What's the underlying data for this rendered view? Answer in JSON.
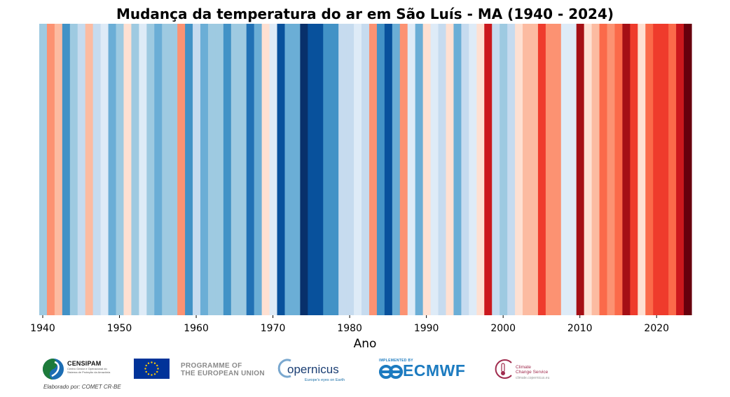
{
  "chart_data": {
    "type": "heatmap",
    "title": "Mudança da temperatura do ar em São Luís - MA (1940 - 2024)",
    "xlabel": "Ano",
    "ylabel": "",
    "xlim": [
      1940,
      2024
    ],
    "xticks": [
      1940,
      1950,
      1960,
      1970,
      1980,
      1990,
      2000,
      2010,
      2020
    ],
    "grid": false,
    "colormap": "RdBu_r",
    "color_scale": [
      {
        "level": -4,
        "color": "#08306b"
      },
      {
        "level": -3,
        "color": "#08519c"
      },
      {
        "level": -2,
        "color": "#2171b5"
      },
      {
        "level": -1.5,
        "color": "#4292c6"
      },
      {
        "level": -1,
        "color": "#6baed6"
      },
      {
        "level": -0.5,
        "color": "#9ecae1"
      },
      {
        "level": -0.25,
        "color": "#c6dbef"
      },
      {
        "level": -0.1,
        "color": "#deebf7"
      },
      {
        "level": 0.1,
        "color": "#fee0d2"
      },
      {
        "level": 0.25,
        "color": "#fcbba1"
      },
      {
        "level": 0.5,
        "color": "#fc9272"
      },
      {
        "level": 1,
        "color": "#fb6a4a"
      },
      {
        "level": 1.5,
        "color": "#ef3b2c"
      },
      {
        "level": 2,
        "color": "#cb181d"
      },
      {
        "level": 2.5,
        "color": "#a50f15"
      },
      {
        "level": 3,
        "color": "#67000d"
      }
    ],
    "years": [
      1940,
      1941,
      1942,
      1943,
      1944,
      1945,
      1946,
      1947,
      1948,
      1949,
      1950,
      1951,
      1952,
      1953,
      1954,
      1955,
      1956,
      1957,
      1958,
      1959,
      1960,
      1961,
      1962,
      1963,
      1964,
      1965,
      1966,
      1967,
      1968,
      1969,
      1970,
      1971,
      1972,
      1973,
      1974,
      1975,
      1976,
      1977,
      1978,
      1979,
      1980,
      1981,
      1982,
      1983,
      1984,
      1985,
      1986,
      1987,
      1988,
      1989,
      1990,
      1991,
      1992,
      1993,
      1994,
      1995,
      1996,
      1997,
      1998,
      1999,
      2000,
      2001,
      2002,
      2003,
      2004,
      2005,
      2006,
      2007,
      2008,
      2009,
      2010,
      2011,
      2012,
      2013,
      2014,
      2015,
      2016,
      2017,
      2018,
      2019,
      2020,
      2021,
      2022,
      2023,
      2024
    ],
    "values": [
      -0.5,
      0.5,
      0.25,
      -1.5,
      -0.5,
      -0.25,
      0.25,
      -0.25,
      -0.1,
      -1,
      -0.5,
      0.1,
      -0.5,
      -0.1,
      -0.5,
      -1,
      -0.5,
      -0.5,
      0.5,
      -1.5,
      -0.25,
      -1,
      -0.5,
      -0.5,
      -1.5,
      -0.5,
      -0.5,
      -2,
      -1,
      0.1,
      -0.1,
      -3,
      -1,
      -1,
      -4,
      -3,
      -3,
      -1.5,
      -1.5,
      -0.25,
      -0.25,
      -0.1,
      -0.25,
      0.5,
      -1.5,
      -3,
      -1,
      0.5,
      -0.1,
      -1,
      0.1,
      -0.1,
      -0.25,
      0.1,
      -1,
      -0.25,
      -0.1,
      0.1,
      2,
      -0.25,
      -0.5,
      -0.25,
      0.1,
      0.25,
      0.25,
      1.5,
      0.5,
      0.5,
      -0.1,
      -0.1,
      2.5,
      0.1,
      0.25,
      1,
      0.5,
      1,
      2.5,
      1.5,
      0.1,
      1,
      1.5,
      1.5,
      1,
      2,
      3
    ]
  },
  "footer": {
    "credit": "Elaborado por: COMET CR-BE",
    "logos": {
      "censipam": {
        "name": "CENSIPAM",
        "sub": "Centro Gestor e Operacional do Sistema de Proteção da Amazônia"
      },
      "eu": {
        "line1": "PROGRAMME OF",
        "line2": "THE EUROPEAN UNION"
      },
      "copernicus": {
        "name": "opernicus",
        "tagline": "Europe's eyes on Earth"
      },
      "ecmwf": {
        "implemented": "IMPLEMENTED BY",
        "name": "ECMWF"
      },
      "c3s": {
        "line1": "Climate",
        "line2": "Change Service",
        "url": "climate.copernicus.eu"
      }
    }
  },
  "colors": {
    "eu_blue": "#003399",
    "eu_star": "#ffcc00",
    "censipam_green": "#1d7a3a",
    "censipam_blue": "#1c6db3",
    "ecmwf_blue": "#1c7bc0"
  }
}
